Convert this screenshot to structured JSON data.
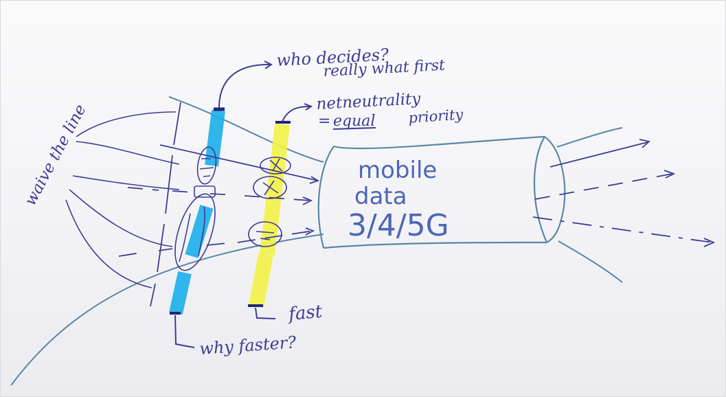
{
  "colors": {
    "ink_purple": "#3b3a98",
    "ink_teal": "#5a86a8",
    "ink_blue_text": "#4d66b8",
    "highlighter_blue": "#1fb0ea",
    "highlighter_yellow": "#f2f24a",
    "paper": "#f4f4f6"
  },
  "labels": {
    "waive_the_line": "waive the line",
    "who_decides": "who decides?",
    "really_what_first": "really what first",
    "net_neutrality": "netneutrality",
    "equal_priority_eq": "=",
    "equal_priority_equal": "equal",
    "equal_priority_priority": "priority",
    "pipe_line1": "mobile",
    "pipe_line2": "data",
    "pipe_line3": "3/4/5G",
    "why_faster": "why faster?",
    "fast": "fast"
  },
  "packets": {
    "blue_band": [
      "",
      "",
      ""
    ],
    "yellow_band": [
      "",
      "",
      ""
    ]
  }
}
